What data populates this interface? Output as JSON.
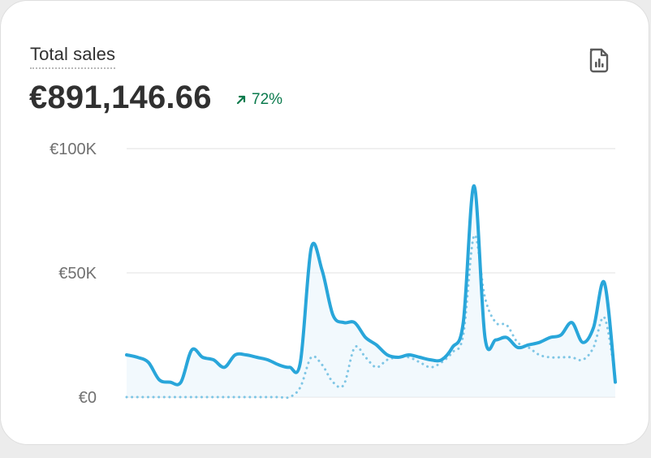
{
  "card": {
    "title": "Total sales",
    "value": "€891,146.66",
    "change": "72%",
    "change_direction": "up",
    "change_color": "#0a7a4c",
    "report_icon": "report-file-icon"
  },
  "chart_data": {
    "type": "line",
    "y_ticks": [
      "€100K",
      "€50K",
      "€0"
    ],
    "ylim": [
      0,
      100000
    ],
    "grid": true,
    "colors": {
      "current": "#29a6da",
      "comparison": "#7fc6e5"
    },
    "series": [
      {
        "style": "solid",
        "values": [
          17000,
          16000,
          14000,
          7000,
          6000,
          6000,
          19000,
          16000,
          15000,
          12000,
          17000,
          17000,
          16000,
          15000,
          13000,
          12000,
          14000,
          60000,
          51000,
          33000,
          30000,
          30000,
          24000,
          21000,
          17000,
          16000,
          17000,
          16000,
          15000,
          15000,
          20000,
          30000,
          85000,
          24000,
          23000,
          24000,
          20000,
          21000,
          22000,
          24000,
          25000,
          30000,
          22000,
          28000,
          46000,
          6000
        ]
      },
      {
        "style": "dotted",
        "values": [
          0,
          0,
          0,
          0,
          0,
          0,
          0,
          0,
          0,
          0,
          0,
          0,
          0,
          0,
          0,
          0,
          4000,
          16000,
          13000,
          6000,
          5000,
          20000,
          16000,
          12000,
          15000,
          16000,
          16000,
          14000,
          12000,
          14000,
          18000,
          25000,
          65000,
          40000,
          30000,
          29000,
          22000,
          20000,
          17000,
          16000,
          16000,
          16000,
          15000,
          20000,
          32000,
          8000
        ]
      }
    ]
  }
}
